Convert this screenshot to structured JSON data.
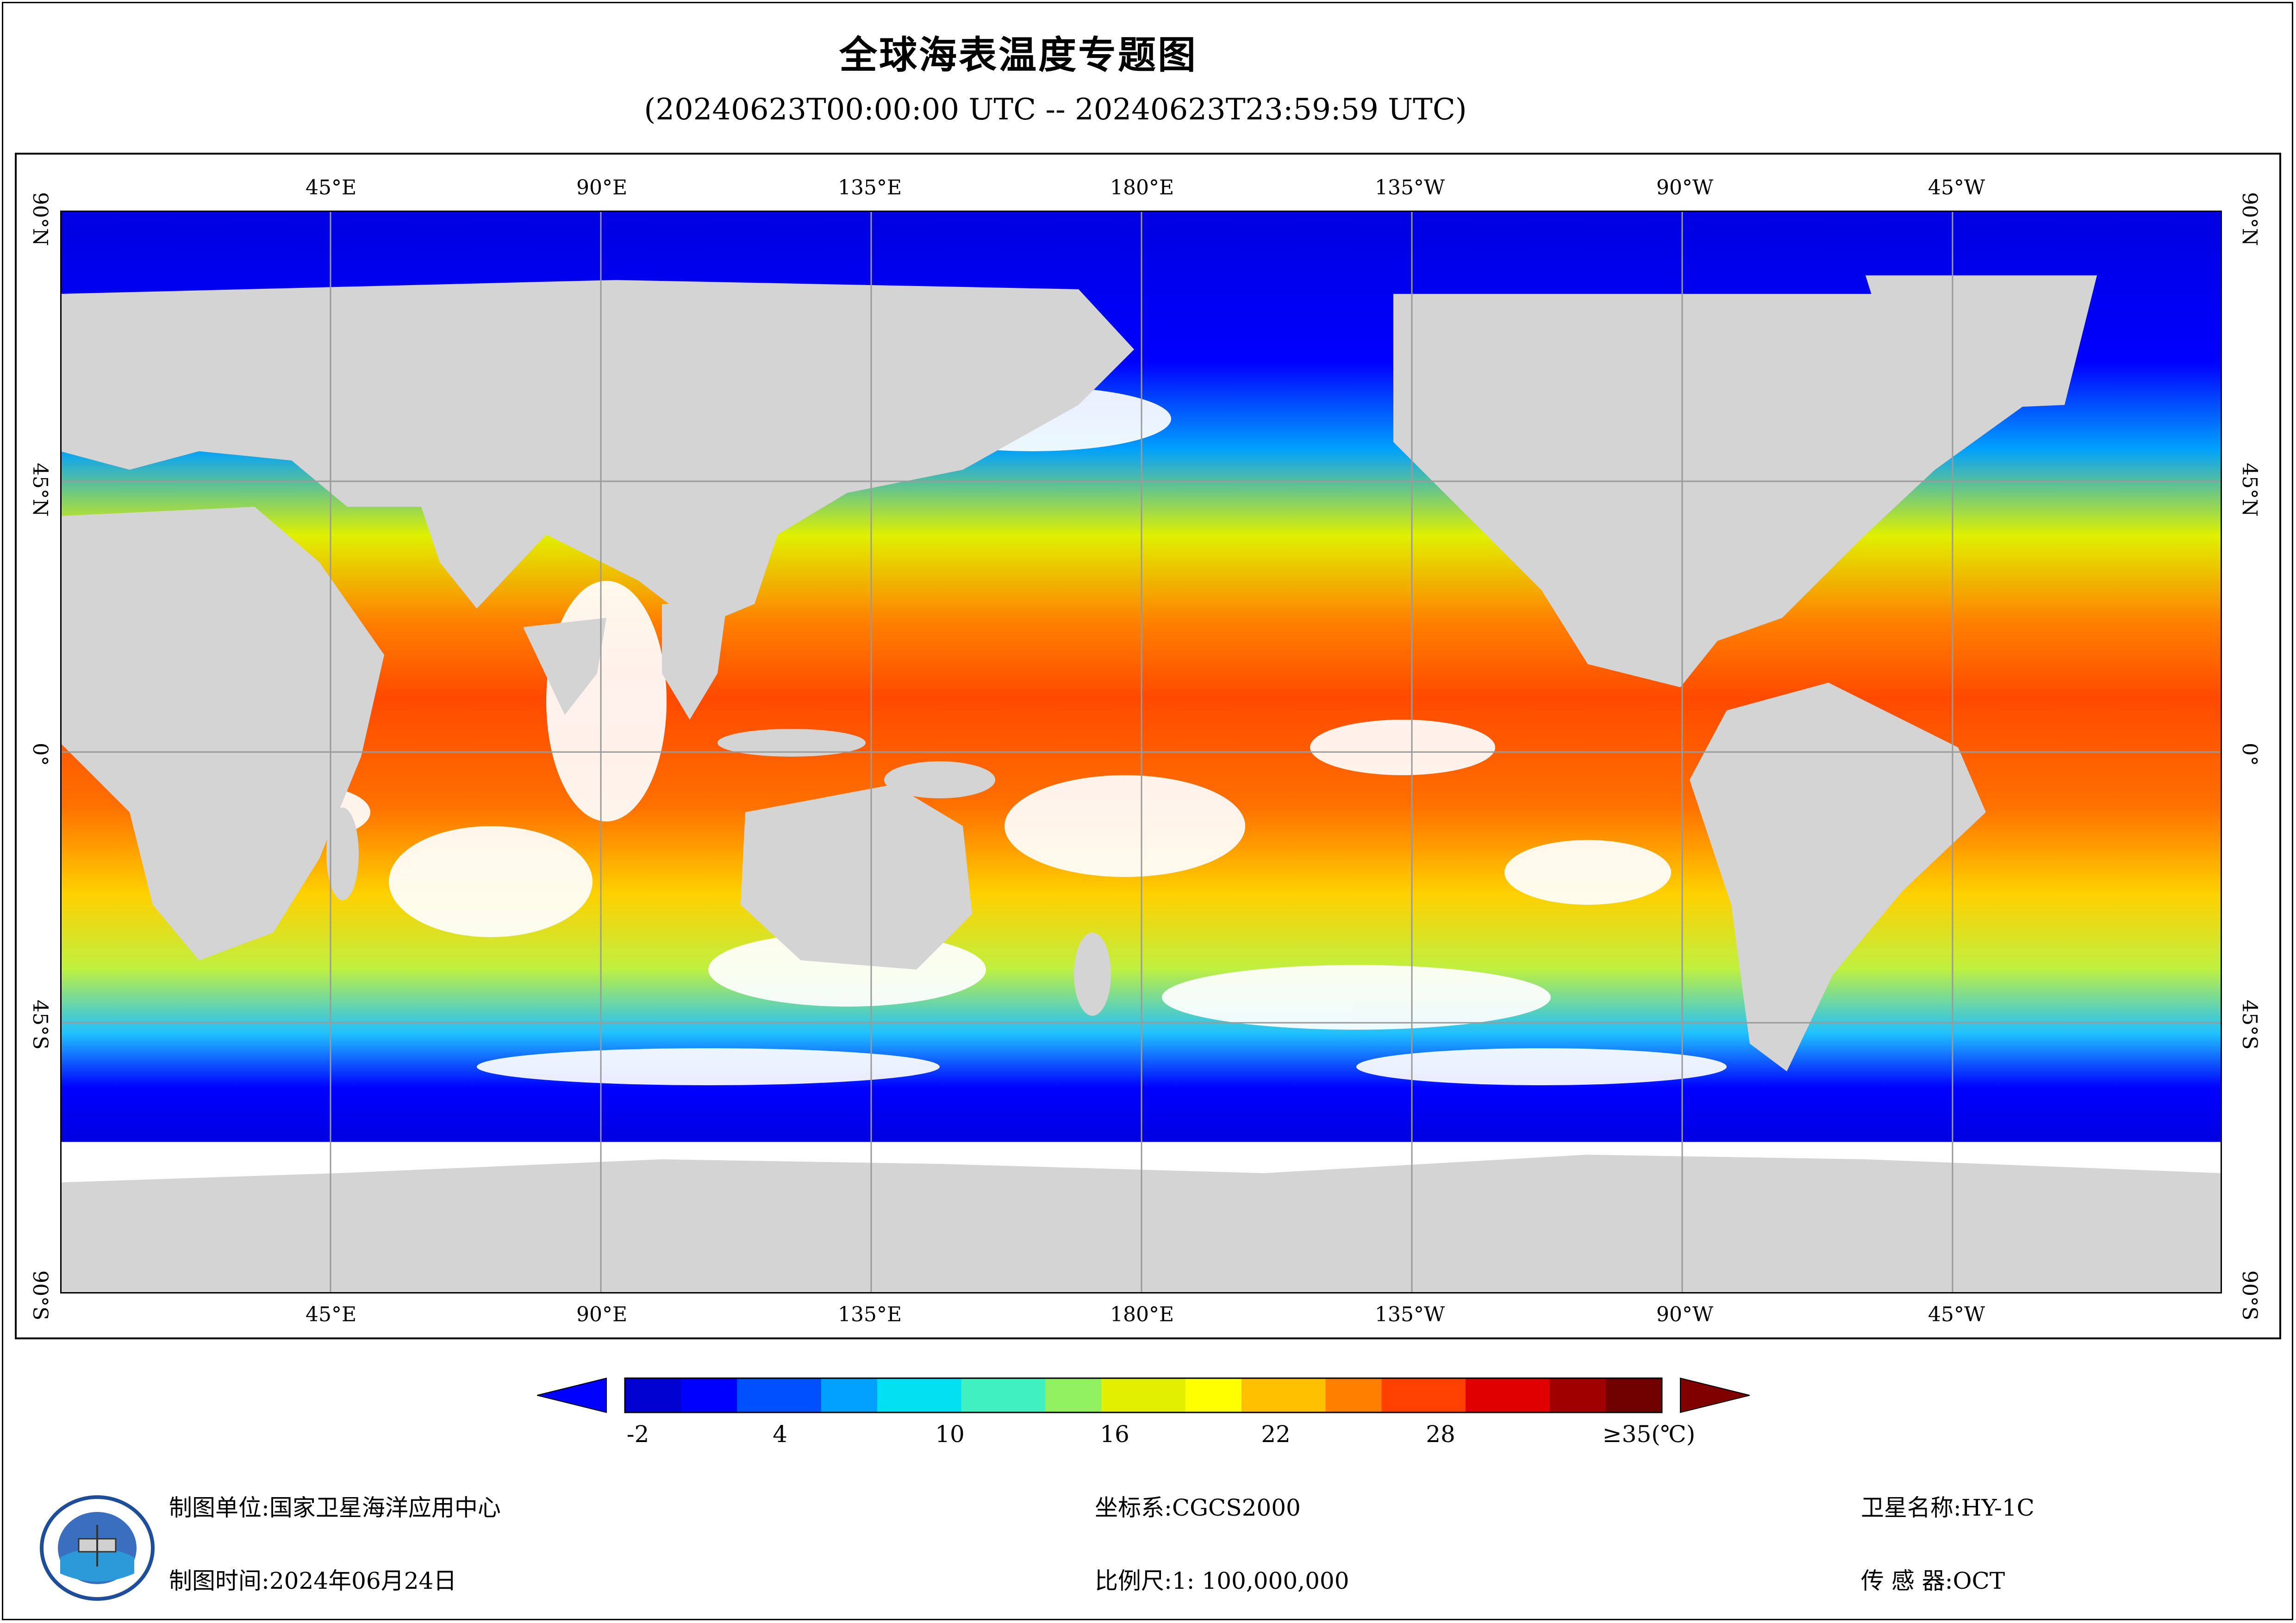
{
  "title": "全球海表温度专题图",
  "subtitle": "(20240623T00:00:00 UTC -- 20240623T23:59:59 UTC)",
  "map": {
    "lon_labels": [
      "45°E",
      "90°E",
      "135°E",
      "180°E",
      "135°W",
      "90°W",
      "45°W"
    ],
    "lat_labels": [
      "90°N",
      "45°N",
      "0°",
      "45°S",
      "90°S"
    ],
    "land_color": "#d4d4d4",
    "grid_color": "#9a9a9a"
  },
  "colorbar": {
    "tick_labels": [
      "-2",
      "4",
      "10",
      "16",
      "22",
      "28",
      "≥35(℃)"
    ],
    "colors": [
      "#0000d0",
      "#0000ff",
      "#0050ff",
      "#00a0ff",
      "#00e0f0",
      "#40f0c0",
      "#90f060",
      "#e0f000",
      "#ffff00",
      "#ffc000",
      "#ff8000",
      "#ff4000",
      "#e00000",
      "#a00000",
      "#700000"
    ],
    "under_color": "#0000ff",
    "over_color": "#800000"
  },
  "footer": {
    "org_label": "制图单位:",
    "org_value": "国家卫星海洋应用中心",
    "date_label": "制图时间:",
    "date_value": "2024年06月24日",
    "crs_label": "坐标系:",
    "crs_value": "CGCS2000",
    "scale_label": "比例尺:",
    "scale_value": "1: 100,000,000",
    "sat_label": "卫星名称:",
    "sat_value": "HY-1C",
    "sensor_label": "传 感 器:",
    "sensor_value": "OCT"
  }
}
